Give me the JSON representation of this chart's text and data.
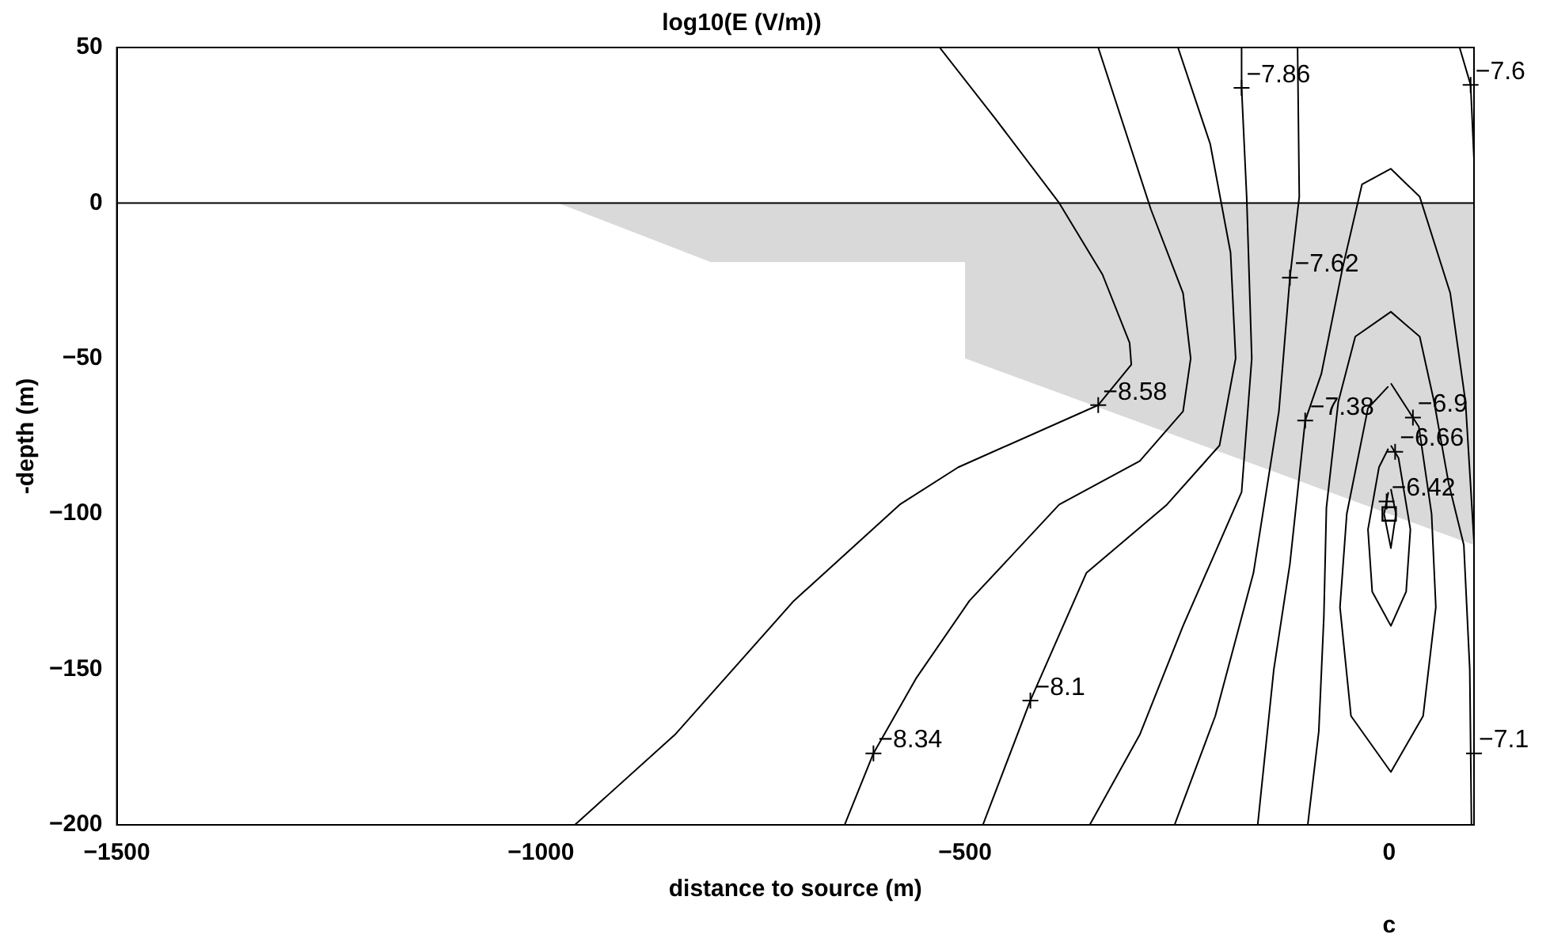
{
  "chart_data": {
    "type": "line",
    "title": "log10(E (V/m))",
    "xlabel": "distance to source (m)",
    "ylabel": "-depth (m)",
    "xlim": [
      -1500,
      100
    ],
    "xticks": [
      -1500,
      -1000,
      -500,
      0
    ],
    "ylim": [
      -200,
      50
    ],
    "yticks": [
      -200,
      -150,
      -100,
      -50,
      0,
      50
    ],
    "grid": false,
    "marker": "none",
    "ref_lines": [
      {
        "axis": "y",
        "value": 0,
        "color": "#000000"
      }
    ],
    "series": [
      {
        "type": "area",
        "color": "#d9d9d9",
        "x": [
          -980,
          -800,
          -500,
          -500,
          100
        ],
        "values": [
          0,
          -19,
          -19,
          -50,
          -110
        ]
      },
      {
        "color": "#000000",
        "x": [
          -530,
          -464,
          -389,
          -338,
          -306,
          -304,
          -343,
          -508,
          -577,
          -702,
          -842,
          -960
        ],
        "values": [
          50,
          27,
          0,
          -23,
          -45,
          -52,
          -65,
          -85,
          -97,
          -128,
          -171,
          -200
        ]
      },
      {
        "color": "#000000",
        "x": [
          -343,
          -281,
          -243,
          -234,
          -243,
          -294,
          -389,
          -495,
          -558,
          -608,
          -642
        ],
        "values": [
          50,
          -2,
          -29,
          -50,
          -67,
          -83,
          -97,
          -128,
          -153,
          -177,
          -200
        ]
      },
      {
        "color": "#000000",
        "x": [
          -249,
          -211,
          -187,
          -181,
          -200,
          -262,
          -357,
          -423,
          -479
        ],
        "values": [
          50,
          19,
          -16,
          -50,
          -78,
          -97,
          -119,
          -160,
          -200
        ]
      },
      {
        "color": "#000000",
        "x": [
          -174,
          -174,
          -168,
          -162,
          -174,
          -243,
          -294,
          -353
        ],
        "values": [
          50,
          37,
          2,
          -50,
          -93,
          -136,
          -171,
          -200
        ]
      },
      {
        "color": "#000000",
        "x": [
          -108,
          -106,
          -117,
          -130,
          -160,
          -205,
          -253
        ],
        "values": [
          50,
          2,
          -24,
          -67,
          -119,
          -165,
          -200
        ]
      },
      {
        "color": "#000000",
        "x": [
          -155,
          -136,
          -117,
          -99,
          -80,
          -55,
          -32,
          2,
          36,
          72,
          90,
          100
        ],
        "values": [
          -200,
          -150,
          -116,
          -70,
          -55,
          -21,
          6,
          11,
          2,
          -29,
          -64,
          -109
        ]
      },
      {
        "color": "#000000",
        "x": [
          -96,
          -83,
          -77,
          -74,
          -60,
          -40,
          2,
          36,
          53,
          70,
          88,
          95,
          97
        ],
        "values": [
          -200,
          -170,
          -133,
          -98,
          -64,
          -43,
          -35,
          -43,
          -64,
          -90,
          -110,
          -150,
          -200
        ]
      },
      {
        "color": "#000000",
        "x": [
          2,
          35,
          50,
          55,
          40,
          2,
          -45,
          -58,
          -50,
          -25,
          -1
        ],
        "values": [
          -58,
          -72,
          -100,
          -130,
          -165,
          -183,
          -165,
          -130,
          -100,
          -66,
          -59
        ]
      },
      {
        "color": "#000000",
        "x": [
          2,
          11,
          25,
          20,
          2,
          -20,
          -25,
          -12,
          -1
        ],
        "values": [
          -78,
          -82,
          -105,
          -125,
          -136,
          -125,
          -105,
          -85,
          -79
        ]
      },
      {
        "color": "#000000",
        "x": [
          2,
          8,
          2,
          -6,
          -1
        ],
        "values": [
          -92,
          -100,
          -111,
          -100,
          -93
        ]
      },
      {
        "color": "#000000",
        "x": [
          83,
          96,
          100
        ],
        "values": [
          50,
          38,
          14
        ]
      },
      {
        "type": "scatter",
        "color": "#000000",
        "marker": "square",
        "x": [
          0
        ],
        "values": [
          -100
        ]
      }
    ],
    "annotations": [
      {
        "text": "−8.58",
        "x": -343,
        "y": -65
      },
      {
        "text": "−8.34",
        "x": -608,
        "y": -177
      },
      {
        "text": "−8.1",
        "x": -423,
        "y": -160
      },
      {
        "text": "−7.86",
        "x": -174,
        "y": 37
      },
      {
        "text": "−7.62",
        "x": -117,
        "y": -24
      },
      {
        "text": "−7.38",
        "x": -99,
        "y": -70
      },
      {
        "text": "−6.9",
        "x": 28,
        "y": -69
      },
      {
        "text": "−6.66",
        "x": 7,
        "y": -80
      },
      {
        "text": "−6.42",
        "x": -3,
        "y": -96
      },
      {
        "text": "−7.6",
        "x": 96,
        "y": 38
      },
      {
        "text": "−7.1",
        "x": 100,
        "y": -177
      },
      "c"
    ]
  }
}
